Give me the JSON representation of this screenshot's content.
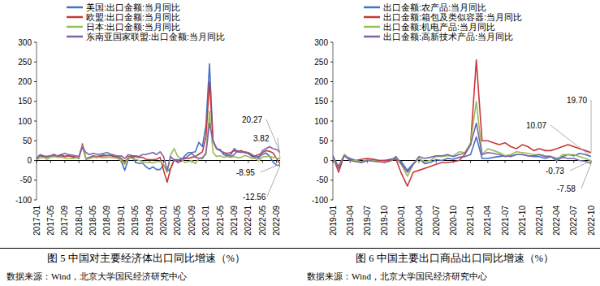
{
  "chart_data": [
    {
      "type": "line",
      "title": "图 5 中国对主要经济体出口同比增速（%）",
      "source": "数据来源：Wind，北京大学国民经济研究中心",
      "categories": [
        "2017-01",
        null,
        null,
        null,
        "2017-05",
        null,
        null,
        null,
        "2017-09",
        null,
        null,
        null,
        "2018-01",
        null,
        null,
        null,
        "2018-05",
        null,
        null,
        null,
        "2018-09",
        null,
        null,
        null,
        "2019-01",
        null,
        null,
        null,
        "2019-05",
        null,
        null,
        null,
        "2019-09",
        null,
        null,
        null,
        "2020-01",
        null,
        null,
        null,
        "2020-05",
        null,
        null,
        null,
        "2020-09",
        null,
        null,
        null,
        "2021-01",
        null,
        null,
        null,
        "2021-05",
        null,
        null,
        null,
        "2021-09",
        null,
        null,
        null,
        "2022-01",
        null,
        null,
        null,
        "2022-05",
        null,
        null,
        null,
        "2022-09",
        null
      ],
      "series": [
        {
          "name": "美国:出口金额:当月同比",
          "color": "#4472c4",
          "values": [
            5,
            12,
            8,
            10,
            12,
            15,
            10,
            15,
            10,
            12,
            10,
            8,
            10,
            35,
            5,
            8,
            12,
            10,
            12,
            14,
            13,
            13,
            10,
            8,
            -2,
            -25,
            3,
            13,
            -4,
            -8,
            -6,
            -16,
            -22,
            -16,
            -23,
            -23,
            -12,
            -28,
            -20,
            2,
            2,
            1,
            12,
            20,
            20,
            22,
            46,
            35,
            90,
            245,
            50,
            30,
            28,
            15,
            12,
            15,
            30,
            22,
            21,
            20,
            18,
            10,
            8,
            10,
            15,
            19,
            11,
            -4,
            -12,
            -12.56
          ]
        },
        {
          "name": "欧盟:出口金额:当月同比",
          "color": "#c8383a",
          "values": [
            3,
            14,
            10,
            8,
            12,
            15,
            10,
            12,
            10,
            12,
            10,
            8,
            5,
            42,
            3,
            5,
            10,
            8,
            10,
            12,
            12,
            13,
            10,
            12,
            5,
            -5,
            10,
            8,
            10,
            8,
            8,
            3,
            2,
            2,
            3,
            8,
            -25,
            -55,
            -20,
            2,
            -5,
            -2,
            7,
            5,
            8,
            10,
            16,
            22,
            60,
            200,
            50,
            30,
            25,
            20,
            18,
            20,
            25,
            22,
            25,
            20,
            18,
            12,
            12,
            15,
            20,
            25,
            23,
            19,
            5,
            -8.95
          ]
        },
        {
          "name": "日本:出口金额:当月同比",
          "color": "#9bbb59",
          "values": [
            2,
            6,
            8,
            3,
            8,
            10,
            8,
            8,
            6,
            5,
            5,
            6,
            8,
            38,
            5,
            5,
            8,
            8,
            8,
            7,
            8,
            8,
            7,
            5,
            0,
            -10,
            8,
            5,
            3,
            0,
            -2,
            -5,
            -5,
            -6,
            -3,
            -2,
            -10,
            -30,
            15,
            30,
            10,
            5,
            -5,
            -3,
            0,
            -8,
            5,
            8,
            15,
            125,
            20,
            10,
            12,
            8,
            10,
            8,
            10,
            7,
            8,
            13,
            10,
            5,
            5,
            -1,
            9,
            10,
            10,
            8,
            6,
            3.82
          ]
        },
        {
          "name": "东南亚国家联盟:出口金额:当月同比",
          "color": "#7e63a8",
          "values": [
            5,
            15,
            12,
            10,
            12,
            13,
            12,
            15,
            18,
            15,
            14,
            12,
            10,
            35,
            20,
            15,
            18,
            16,
            16,
            18,
            20,
            16,
            14,
            10,
            12,
            5,
            15,
            12,
            12,
            10,
            15,
            15,
            18,
            20,
            15,
            22,
            10,
            -25,
            10,
            0,
            -1,
            5,
            4,
            12,
            18,
            8,
            6,
            5,
            20,
            95,
            50,
            30,
            25,
            20,
            15,
            10,
            15,
            25,
            20,
            22,
            20,
            15,
            10,
            5,
            25,
            30,
            35,
            30,
            28,
            20.27
          ]
        }
      ],
      "annotations": [
        {
          "text": "20.27",
          "value": 20.27
        },
        {
          "text": "3.82",
          "value": 3.82
        },
        {
          "text": "-8.95",
          "value": -8.95
        },
        {
          "text": "-12.56",
          "value": -12.56
        }
      ],
      "ylim": [
        -100,
        300
      ],
      "yticks": [
        -100,
        -50,
        0,
        50,
        100,
        150,
        200,
        250,
        300
      ],
      "grid": false,
      "legend": "upper left"
    },
    {
      "type": "line",
      "title": "图 6 中国主要出口商品出口同比增速（%）",
      "source": "数据来源：Wind，北京大学国民经济研究中心",
      "categories": [
        "2019-01",
        null,
        null,
        "2019-04",
        null,
        null,
        "2019-07",
        null,
        null,
        "2019-10",
        null,
        null,
        "2020-01",
        null,
        null,
        "2020-04",
        null,
        null,
        "2020-07",
        null,
        null,
        "2020-10",
        null,
        null,
        "2021-01",
        null,
        null,
        "2021-04",
        null,
        null,
        "2021-07",
        null,
        null,
        "2021-10",
        null,
        null,
        "2022-01",
        null,
        null,
        "2022-04",
        null,
        null,
        "2022-07",
        null,
        null,
        "2022-10"
      ],
      "series": [
        {
          "name": "出口金额:农产品:当月同比",
          "color": "#4472c4",
          "values": [
            12,
            -20,
            12,
            5,
            0,
            -5,
            0,
            3,
            0,
            0,
            3,
            5,
            -5,
            -25,
            -8,
            5,
            -8,
            -5,
            2,
            0,
            5,
            3,
            8,
            10,
            15,
            60,
            5,
            5,
            8,
            10,
            12,
            10,
            15,
            15,
            12,
            10,
            10,
            5,
            10,
            5,
            10,
            15,
            12,
            18,
            15,
            10.07
          ]
        },
        {
          "name": "出口金额:箱包及类似容器:当月同比",
          "color": "#c8383a",
          "values": [
            10,
            -30,
            15,
            2,
            0,
            3,
            5,
            3,
            0,
            0,
            0,
            3,
            -35,
            -65,
            -30,
            -25,
            -20,
            -15,
            -10,
            -5,
            -5,
            -3,
            0,
            15,
            40,
            255,
            50,
            50,
            45,
            40,
            45,
            35,
            30,
            40,
            35,
            25,
            30,
            25,
            25,
            30,
            35,
            40,
            35,
            30,
            25,
            19.7
          ]
        },
        {
          "name": "出口金额:机电产品:当月同比",
          "color": "#9bbb59",
          "values": [
            5,
            -15,
            15,
            0,
            0,
            -3,
            2,
            0,
            -3,
            -3,
            -2,
            8,
            -12,
            -40,
            -10,
            5,
            -3,
            0,
            10,
            10,
            12,
            12,
            22,
            20,
            45,
            150,
            15,
            30,
            25,
            20,
            12,
            15,
            22,
            20,
            18,
            15,
            15,
            12,
            10,
            0,
            15,
            15,
            15,
            10,
            5,
            -0.73
          ]
        },
        {
          "name": "出口金额:高新技术产品:当月同比",
          "color": "#7e63a8",
          "values": [
            8,
            -15,
            12,
            0,
            -3,
            -5,
            0,
            -2,
            -3,
            -5,
            -1,
            10,
            -10,
            -30,
            -10,
            10,
            5,
            8,
            12,
            12,
            15,
            10,
            15,
            18,
            40,
            95,
            15,
            20,
            18,
            15,
            10,
            12,
            15,
            15,
            12,
            12,
            15,
            10,
            10,
            0,
            8,
            5,
            5,
            0,
            -2,
            -7.58
          ]
        }
      ],
      "annotations": [
        {
          "text": "19.70",
          "value": 19.7
        },
        {
          "text": "10.07",
          "value": 10.07
        },
        {
          "text": "-0.73",
          "value": -0.73
        },
        {
          "text": "-7.58",
          "value": -7.58
        }
      ],
      "ylim": [
        -100,
        300
      ],
      "yticks": [
        -100,
        -50,
        0,
        50,
        100,
        150,
        200,
        250,
        300
      ],
      "grid": false,
      "legend": "upper left"
    }
  ]
}
